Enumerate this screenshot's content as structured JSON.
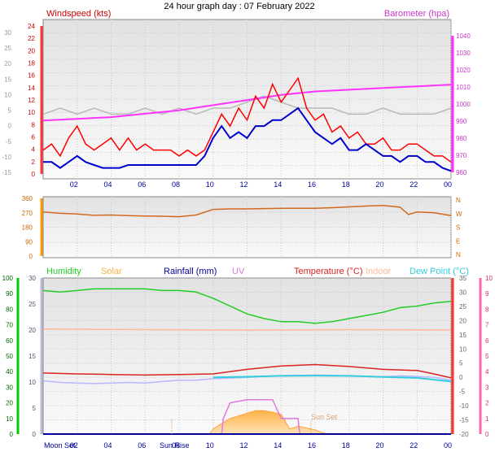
{
  "title": "24 hour graph day : 07 February 2022",
  "colors": {
    "windspeed": "#ff0000",
    "gust_avg": "#0000cc",
    "barometer": "#ff33ff",
    "pressure_grey": "#b8b8b8",
    "direction": "#d2691e",
    "humidity": "#22cc22",
    "solar": "#ffb347",
    "rainfall": "#000099",
    "uv": "#e07ae0",
    "temperature": "#dd2222",
    "indoor": "#ffb899",
    "dewpoint": "#33ccdd",
    "dewpoint_light": "#b8b8ff",
    "left_axis_green": "#00cc00",
    "right_axis_pink": "#ff66aa"
  },
  "x_ticks": [
    "02",
    "04",
    "06",
    "08",
    "10",
    "12",
    "14",
    "16",
    "18",
    "20",
    "22",
    "00"
  ],
  "chart_data": [
    {
      "type": "line",
      "panel": "wind",
      "xlim": [
        0,
        24
      ],
      "left_label": "Windspeed (kts)",
      "right_label": "Barometer (hpa)",
      "y_outer_ticks": [
        "30",
        "25",
        "20",
        "15",
        "10",
        "5",
        "0",
        "-5",
        "-10",
        "-15"
      ],
      "y_left_ticks": [
        "24",
        "22",
        "20",
        "18",
        "16",
        "14",
        "12",
        "10",
        "8",
        "6",
        "4",
        "2",
        "0"
      ],
      "y_left_lim": [
        0,
        25
      ],
      "y_right_ticks": [
        "1040",
        "1030",
        "1020",
        "1010",
        "1000",
        "990",
        "980",
        "970",
        "960"
      ],
      "y_right_lim": [
        955,
        1048
      ],
      "series": [
        {
          "key": "wind_gust",
          "x": [
            0,
            0.5,
            1,
            1.5,
            2,
            2.5,
            3,
            3.5,
            4,
            4.5,
            5,
            5.5,
            6,
            6.5,
            7,
            7.5,
            8,
            8.5,
            9,
            9.5,
            10,
            10.5,
            11,
            11.5,
            12,
            12.5,
            13,
            13.5,
            14,
            14.5,
            15,
            15.5,
            16,
            16.5,
            17,
            17.5,
            18,
            18.5,
            19,
            19.5,
            20,
            20.5,
            21,
            21.5,
            22,
            22.5,
            23,
            23.5,
            24
          ],
          "y": [
            4,
            5,
            3,
            6,
            8,
            5,
            4,
            5,
            6,
            4,
            6,
            4,
            5,
            4,
            4,
            4,
            3,
            4,
            3,
            4,
            7,
            10,
            8,
            11,
            9,
            13,
            11,
            15,
            12,
            14,
            16,
            11,
            9,
            10,
            7,
            8,
            6,
            7,
            5,
            5,
            6,
            4,
            4,
            5,
            5,
            4,
            3,
            3,
            2
          ]
        },
        {
          "key": "wind_avg",
          "x": [
            0,
            0.5,
            1,
            1.5,
            2,
            2.5,
            3,
            3.5,
            4,
            4.5,
            5,
            5.5,
            6,
            6.5,
            7,
            7.5,
            8,
            8.5,
            9,
            9.5,
            10,
            10.5,
            11,
            11.5,
            12,
            12.5,
            13,
            13.5,
            14,
            14.5,
            15,
            15.5,
            16,
            16.5,
            17,
            17.5,
            18,
            18.5,
            19,
            19.5,
            20,
            20.5,
            21,
            21.5,
            22,
            22.5,
            23,
            23.5,
            24
          ],
          "y": [
            2,
            2,
            1,
            2,
            3,
            2,
            1.5,
            1,
            1,
            1,
            1.5,
            1.5,
            1.5,
            1.5,
            1.5,
            1.5,
            1.5,
            1.5,
            1.5,
            3,
            6,
            8,
            6,
            7,
            6,
            8,
            8,
            9,
            9,
            10,
            11,
            9,
            7,
            6,
            5,
            6,
            4,
            4,
            5,
            4,
            3,
            3,
            2,
            3,
            3,
            2,
            2,
            1,
            0.5
          ]
        },
        {
          "key": "barometer",
          "x": [
            0,
            2,
            4,
            6,
            8,
            10,
            12,
            14,
            16,
            18,
            20,
            22,
            24
          ],
          "y": [
            989,
            990,
            991,
            993,
            995,
            998,
            1001,
            1004,
            1006,
            1007,
            1008,
            1009,
            1010
          ]
        },
        {
          "key": "pressure_grey",
          "x": [
            0,
            1,
            2,
            3,
            4,
            5,
            6,
            7,
            8,
            9,
            10,
            11,
            12,
            13,
            14,
            15,
            16,
            17,
            18,
            19,
            20,
            21,
            22,
            23,
            24
          ],
          "y": [
            10,
            11,
            10,
            11,
            10,
            10,
            11,
            10,
            11,
            10,
            11,
            11,
            12,
            13,
            12,
            11,
            11,
            11,
            10,
            10,
            11,
            10,
            10,
            10,
            11
          ]
        }
      ]
    },
    {
      "type": "line",
      "panel": "direction",
      "xlim": [
        0,
        24
      ],
      "y_left_ticks": [
        "360",
        "270",
        "180",
        "90",
        "0"
      ],
      "y_left_lim": [
        0,
        360
      ],
      "y_right_labels": [
        "N",
        "W",
        "S",
        "E",
        "N"
      ],
      "series": [
        {
          "key": "wind_direction",
          "x": [
            0,
            1,
            2,
            3,
            4,
            5,
            6,
            7,
            8,
            9,
            10,
            11,
            12,
            13,
            14,
            15,
            16,
            17,
            18,
            19,
            20,
            21,
            21.5,
            22,
            23,
            24
          ],
          "y": [
            270,
            262,
            258,
            250,
            252,
            248,
            246,
            245,
            242,
            252,
            285,
            288,
            288,
            290,
            292,
            292,
            292,
            295,
            300,
            305,
            308,
            298,
            255,
            270,
            265,
            248
          ]
        }
      ]
    },
    {
      "type": "line",
      "panel": "temperature",
      "xlim": [
        0,
        24
      ],
      "legend": [
        "Humidity",
        "Solar",
        "Rainfall (mm)",
        "UV",
        "Temperature (°C)",
        "Indoor",
        "Dew Point (°C)"
      ],
      "y_far_left_ticks": [
        "100",
        "90",
        "80",
        "70",
        "60",
        "50",
        "40",
        "30",
        "20",
        "10",
        "0"
      ],
      "y_left_ticks": [
        "30",
        "25",
        "20",
        "15",
        "10",
        "5",
        "0"
      ],
      "y_mid_ticks": [
        "35",
        "30",
        "25",
        "20",
        "15",
        "10",
        "5",
        "0",
        "-5",
        "-10",
        "-15",
        "-20"
      ],
      "y_mid_lim": [
        -20,
        35
      ],
      "y_right_ticks": [
        "10",
        "9",
        "8",
        "7",
        "6",
        "5",
        "4",
        "3",
        "2",
        "1",
        "0"
      ],
      "series": [
        {
          "key": "humidity",
          "x": [
            0,
            1,
            2,
            3,
            4,
            5,
            6,
            7,
            8,
            9,
            10,
            11,
            12,
            13,
            14,
            15,
            16,
            17,
            18,
            19,
            20,
            21,
            22,
            23,
            24
          ],
          "y": [
            92,
            91,
            92,
            93,
            93,
            93,
            93,
            92,
            92,
            91,
            87,
            82,
            77,
            74,
            72,
            72,
            71,
            72,
            74,
            76,
            78,
            81,
            82,
            84,
            85
          ]
        },
        {
          "key": "solar",
          "x": [
            0,
            9.8,
            10,
            11,
            12,
            12.5,
            13,
            13.5,
            14,
            14.5,
            15,
            16,
            16.4,
            16.8,
            24
          ],
          "y": [
            0,
            0,
            1,
            3,
            4,
            4.5,
            4.5,
            4.2,
            3.8,
            1,
            1.5,
            0.8,
            0.3,
            0,
            0
          ]
        },
        {
          "key": "uv",
          "x": [
            0,
            10.5,
            10.6,
            11,
            12,
            13,
            13.5,
            14,
            15,
            15.1,
            24
          ],
          "y": [
            0,
            0,
            1,
            2,
            2.2,
            2.2,
            2.2,
            1,
            1,
            0,
            0
          ]
        },
        {
          "key": "indoor",
          "x": [
            0,
            6,
            12,
            18,
            24
          ],
          "y": [
            17,
            16.8,
            16.6,
            16.8,
            16.7
          ]
        },
        {
          "key": "temperature",
          "x": [
            0,
            2,
            4,
            6,
            8,
            10,
            12,
            14,
            16,
            18,
            20,
            21,
            22,
            23,
            24
          ],
          "y": [
            1.5,
            1.2,
            1,
            0.8,
            1,
            1.2,
            2.8,
            4,
            4.5,
            3.8,
            2.8,
            2.6,
            2.4,
            1.2,
            -0.2
          ]
        },
        {
          "key": "dewpoint_light",
          "x": [
            0,
            1,
            2,
            3,
            4,
            5,
            6,
            7,
            8,
            9,
            10,
            12,
            14,
            16,
            18,
            20,
            21,
            22,
            23,
            24
          ],
          "y": [
            -1.2,
            -1.8,
            -2,
            -2.2,
            -2,
            -1.8,
            -2,
            -1.5,
            -1,
            -1,
            -0.5,
            0,
            0.6,
            0.8,
            0.5,
            0.2,
            0.5,
            0.3,
            0,
            -1
          ]
        },
        {
          "key": "dewpoint",
          "x": [
            10,
            12,
            14,
            16,
            18,
            20,
            22,
            24
          ],
          "y": [
            0,
            0.2,
            0.5,
            0.6,
            0.5,
            0.1,
            -0.2,
            -1.5
          ]
        },
        {
          "key": "rainfall",
          "x": [
            0,
            24
          ],
          "y": [
            0,
            0
          ]
        }
      ]
    }
  ],
  "annotations": {
    "moon_set": "Moon Set",
    "sun_rise": "Sun Rise",
    "sun_set": "Sun Set"
  },
  "direction_legend_letters": [
    "N",
    "W",
    "S",
    "E",
    "N"
  ]
}
